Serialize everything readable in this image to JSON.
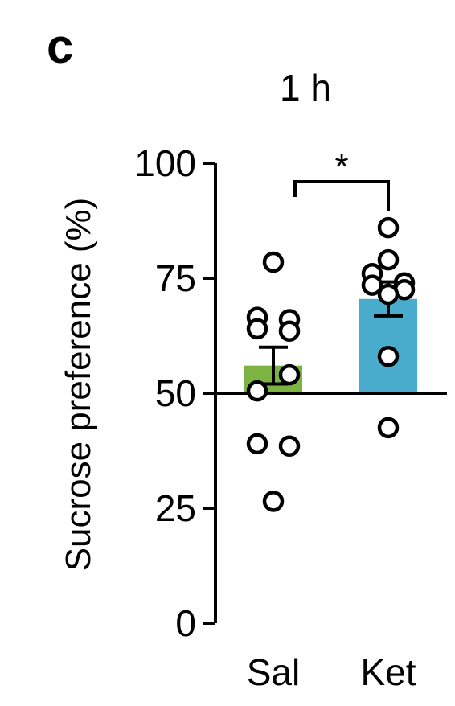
{
  "panel_label": "c",
  "chart_data": {
    "type": "bar",
    "title": "1 h",
    "ylabel": "Sucrose preference (%)",
    "xlabel": "",
    "categories": [
      "Sal",
      "Ket"
    ],
    "ylim": [
      0,
      100
    ],
    "yticks": [
      0,
      25,
      50,
      75,
      100
    ],
    "baseline": 50,
    "colors": [
      "#7cb342",
      "#4aaccd"
    ],
    "means": [
      56,
      70.5
    ],
    "errors": [
      4,
      3.7
    ],
    "points": [
      [
        78.5,
        66.5,
        66,
        64,
        63.5,
        54,
        50.5,
        39,
        38.5,
        26.5
      ],
      [
        86,
        79,
        76,
        74,
        73.5,
        72.5,
        71.5,
        58,
        42.5
      ]
    ],
    "significance": {
      "between": [
        "Sal",
        "Ket"
      ],
      "label": "*"
    }
  }
}
